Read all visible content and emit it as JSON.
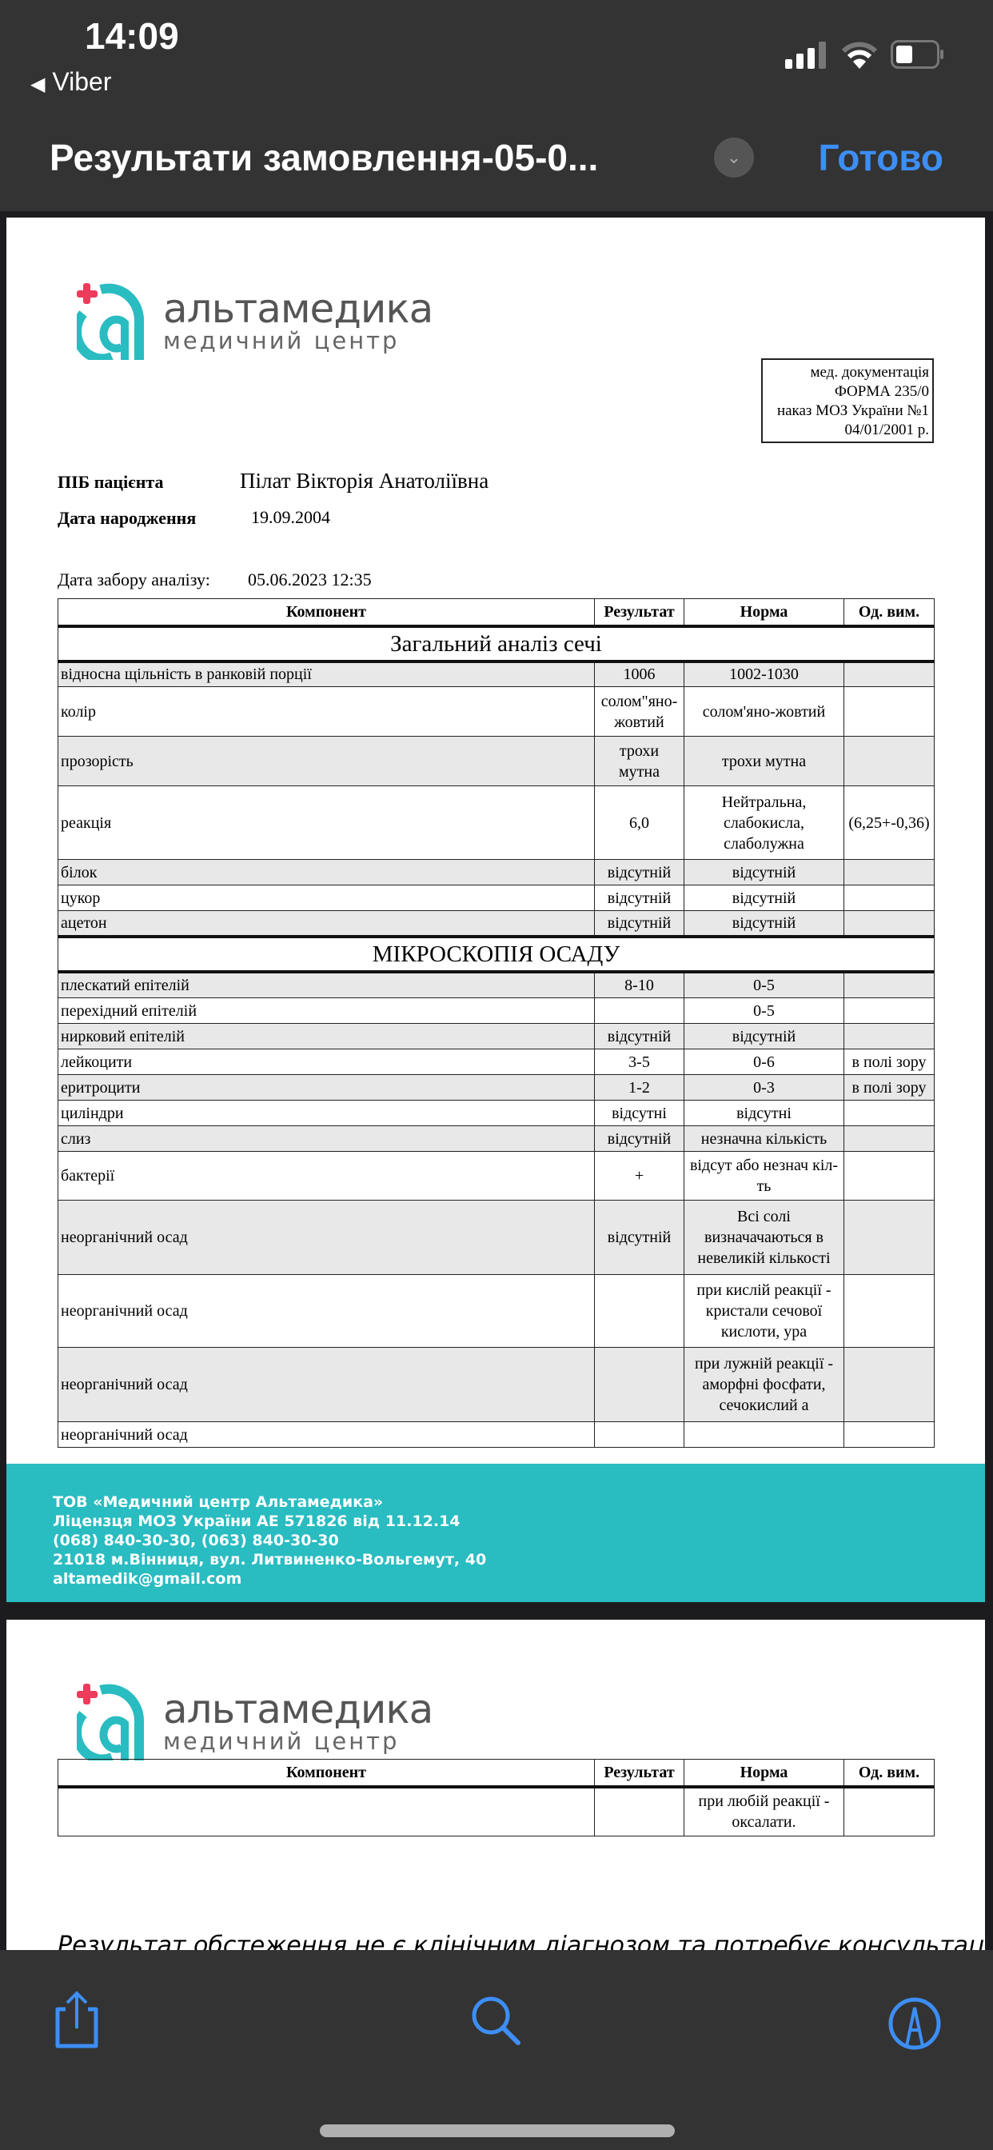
{
  "status_bar": {
    "time": "14:09",
    "back_app": "Viber"
  },
  "nav": {
    "title": "Результати замовлення-05-0...",
    "done_label": "Готово"
  },
  "logo": {
    "name": "альтамедика",
    "subtitle": "медичний центр"
  },
  "form_box": [
    "мед. документація",
    "ФОРМА 235/0",
    "наказ МОЗ України №1",
    "04/01/2001 р."
  ],
  "patient": {
    "name_label": "ПІБ пацієнта",
    "name": "Пілат Вікторія Анатоліївна",
    "dob_label": "Дата народження",
    "dob": "19.09.2004",
    "sample_label": "Дата забору аналізу:",
    "sample_date": "05.06.2023 12:35"
  },
  "table": {
    "headers": [
      "Компонент",
      "Результат",
      "Норма",
      "Од. вим."
    ],
    "section1": "Загальний аналіз сечі",
    "rows1": [
      [
        "відносна щільність в ранковій порції",
        "1006",
        "1002-1030",
        ""
      ],
      [
        "колір",
        "солом\"яно-жовтий",
        "солом'яно-жовтий",
        ""
      ],
      [
        "прозорість",
        "трохи мутна",
        "трохи мутна",
        ""
      ],
      [
        "реакція",
        "6,0",
        "Нейтральна, слабокисла, слаболужна",
        "(6,25+-0,36)"
      ],
      [
        "білок",
        "відсутній",
        "відсутній",
        ""
      ],
      [
        "цукор",
        "відсутній",
        "відсутній",
        ""
      ],
      [
        "ацетон",
        "відсутній",
        "відсутній",
        ""
      ]
    ],
    "section2": "МІКРОСКОПІЯ ОСАДУ",
    "rows2": [
      [
        "плескатий епітелій",
        "8-10",
        "0-5",
        ""
      ],
      [
        "перехідний епітелій",
        "",
        "0-5",
        ""
      ],
      [
        "нирковий епітелій",
        "відсутній",
        "відсутній",
        ""
      ],
      [
        "лейкоцити",
        "3-5",
        "0-6",
        "в полі зору"
      ],
      [
        "еритроцити",
        "1-2",
        "0-3",
        "в полі зору"
      ],
      [
        "циліндри",
        "відсутні",
        "відсутні",
        ""
      ],
      [
        "слиз",
        "відсутній",
        "незначна кількість",
        ""
      ],
      [
        "бактерії",
        "+",
        "відсут або незнач кіл-ть",
        ""
      ],
      [
        "неорганічний осад",
        "відсутній",
        "Всі солі визначачаються в невеликій кількості",
        ""
      ],
      [
        "неорганічний осад",
        "",
        "при кислій реакції - кристали сечової кислоти, ура",
        ""
      ],
      [
        "неорганічний осад",
        "",
        "при лужній реакції - аморфні фосфати, сечокислий а",
        ""
      ],
      [
        "неорганічний осад",
        "",
        "",
        ""
      ]
    ],
    "page2_rows": [
      [
        "",
        "",
        "при любій реакції - оксалати.",
        ""
      ]
    ]
  },
  "footer": [
    "ТОВ «Медичний центр Альтамедика»",
    "Ліцензця МОЗ України АЕ 571826 від 11.12.14",
    "(068) 840-30-30, (063) 840-30-30",
    "21018 м.Вінниця, вул. Литвиненко-Вольгемут, 40",
    "altamedik@gmail.com"
  ],
  "disclaimer": "Результат обстеження не є клінічним діагнозом та потребує консультації",
  "toolbar": {
    "icons": [
      "share-icon",
      "search-icon",
      "markup-icon"
    ]
  },
  "colors": {
    "accent": "#3d8ef5",
    "brand_teal": "#29bcc1",
    "brand_red": "#ec3b5b",
    "bar": "#333333"
  }
}
